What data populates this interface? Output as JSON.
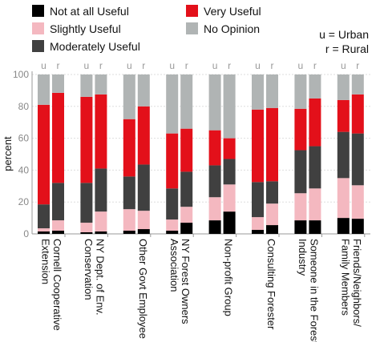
{
  "chart_data": {
    "type": "stacked-bar",
    "y_label": "percent",
    "categories": [
      [
        "Cornell Cooperative",
        "Extension"
      ],
      [
        "NY Dept. of Env.",
        "Conservation"
      ],
      [
        "Other Govt Employee"
      ],
      [
        "NY Forest Owners",
        "Association"
      ],
      [
        "Non-profit Group"
      ],
      [
        "Consulting Forester"
      ],
      [
        "Someone in the Forest",
        "Industry"
      ],
      [
        "Friends/Neighbors/",
        "Family Members"
      ]
    ],
    "bar_labels": [
      "u",
      "r"
    ],
    "subgroup_legend": [
      "u = Urban",
      "r = Rural"
    ],
    "series": [
      {
        "name": "Not at all Useful",
        "color": "#000000",
        "values": [
          [
            1.5,
            2
          ],
          [
            1,
            1.5
          ],
          [
            2,
            3
          ],
          [
            2,
            7
          ],
          [
            8.5,
            14
          ],
          [
            2.5,
            5.5
          ],
          [
            8.5,
            8.5
          ],
          [
            10,
            9.5
          ]
        ]
      },
      {
        "name": "Slightly Useful",
        "color": "#f4b8c0",
        "values": [
          [
            2,
            6.5
          ],
          [
            6,
            12.5
          ],
          [
            13.5,
            11.5
          ],
          [
            7,
            10
          ],
          [
            14.5,
            17
          ],
          [
            8,
            13.5
          ],
          [
            17,
            20
          ],
          [
            25,
            21
          ]
        ]
      },
      {
        "name": "Moderately Useful",
        "color": "#404040",
        "values": [
          [
            15,
            23.5
          ],
          [
            25,
            27
          ],
          [
            20.5,
            29
          ],
          [
            19.5,
            22
          ],
          [
            20,
            16
          ],
          [
            22,
            14
          ],
          [
            27,
            26.5
          ],
          [
            29,
            32.5
          ]
        ]
      },
      {
        "name": "Very Useful",
        "color": "#e3101a",
        "values": [
          [
            62.5,
            56.5
          ],
          [
            54,
            46.5
          ],
          [
            36,
            36.5
          ],
          [
            34.5,
            27
          ],
          [
            22,
            13
          ],
          [
            45.5,
            46
          ],
          [
            26,
            30
          ],
          [
            20,
            24.5
          ]
        ]
      },
      {
        "name": "No Opinion",
        "color": "#b0b4b4",
        "values": [
          [
            19,
            11.5
          ],
          [
            14,
            12.5
          ],
          [
            28,
            20
          ],
          [
            37,
            34
          ],
          [
            35,
            40
          ],
          [
            22,
            21
          ],
          [
            21.5,
            15
          ],
          [
            16,
            12.5
          ]
        ]
      }
    ],
    "ylim": [
      0,
      100
    ],
    "yticks": [
      0,
      20,
      40,
      60,
      80,
      100
    ],
    "grid": true
  }
}
